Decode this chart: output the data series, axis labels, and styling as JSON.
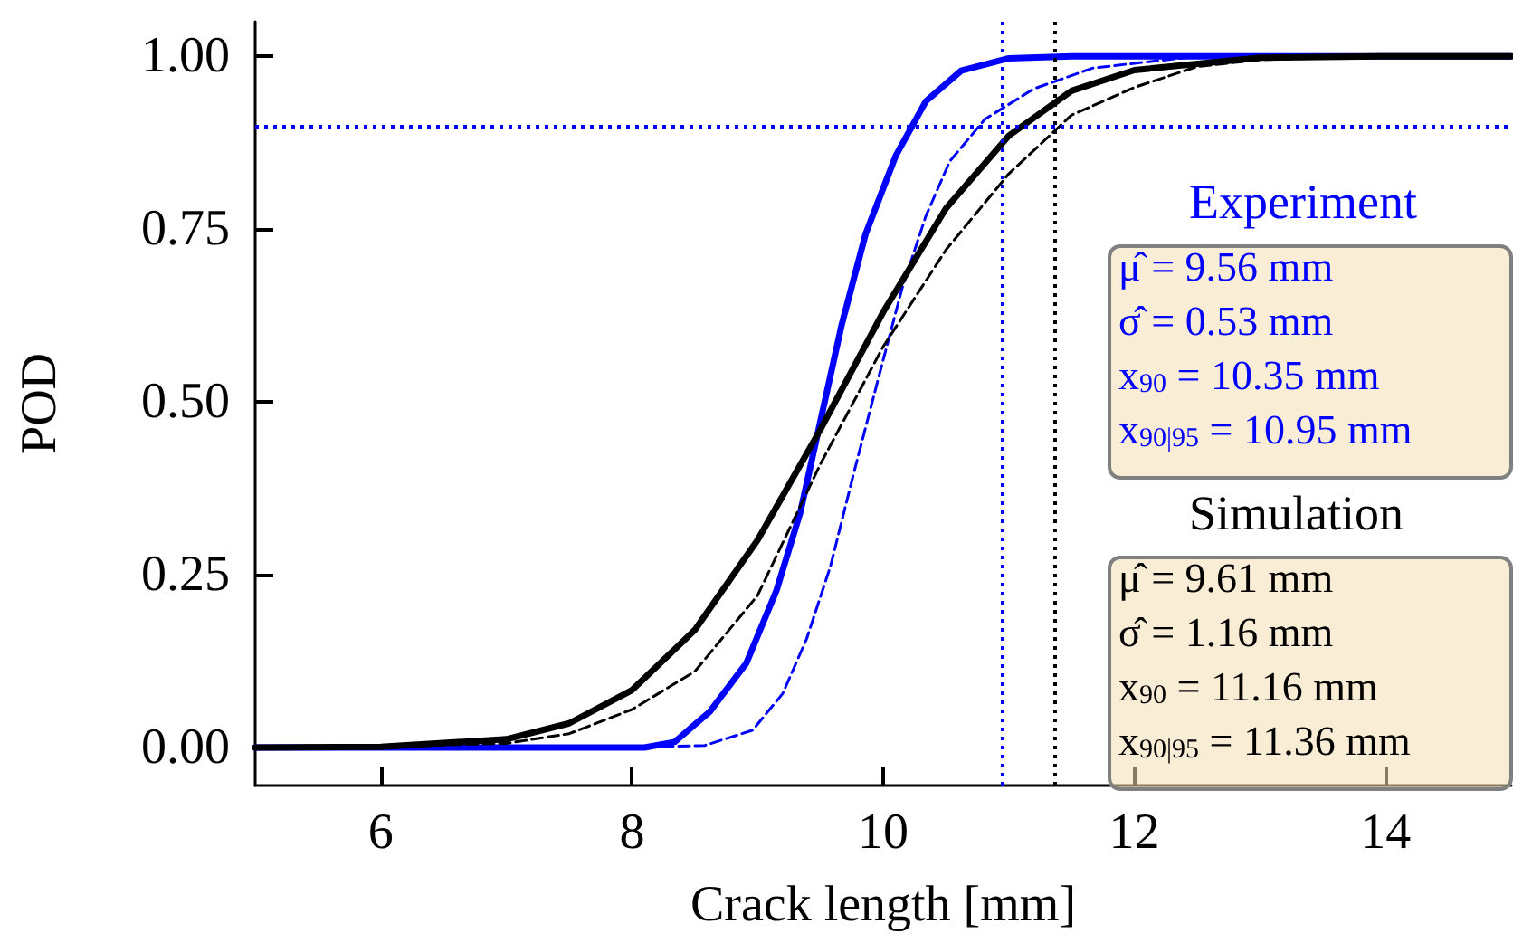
{
  "chart_data": {
    "type": "line",
    "xlabel": "Crack length [mm]",
    "ylabel": "POD",
    "xlim": [
      5,
      15
    ],
    "ylim": [
      -0.055,
      1.05
    ],
    "xticks": [
      6,
      8,
      10,
      12,
      14
    ],
    "yticks": [
      {
        "value": 0,
        "label": "0.00"
      },
      {
        "value": 0.25,
        "label": "0.25"
      },
      {
        "value": 0.5,
        "label": "0.50"
      },
      {
        "value": 0.75,
        "label": "0.75"
      },
      {
        "value": 1,
        "label": "1.00"
      }
    ],
    "marker": "none",
    "series": [
      {
        "color": "#0000ff",
        "line_style": "solid",
        "x": [
          5,
          7.39,
          8.1,
          8.34,
          8.62,
          8.91,
          9.15,
          9.34,
          9.5,
          9.67,
          9.86,
          10.1,
          10.34,
          10.62,
          11.0,
          11.5,
          15
        ],
        "values": [
          0,
          0,
          0,
          0.008,
          0.052,
          0.122,
          0.227,
          0.34,
          0.472,
          0.612,
          0.743,
          0.856,
          0.935,
          0.979,
          0.997,
          1,
          1
        ]
      },
      {
        "color": "#0000ff",
        "line_style": "dashed",
        "x": [
          5,
          8.0,
          8.58,
          8.96,
          9.2,
          9.39,
          9.58,
          9.77,
          9.96,
          10.15,
          10.34,
          10.53,
          10.81,
          11.2,
          11.67,
          12.5,
          15
        ],
        "values": [
          0,
          0,
          0.003,
          0.025,
          0.078,
          0.157,
          0.262,
          0.4,
          0.533,
          0.664,
          0.769,
          0.848,
          0.909,
          0.953,
          0.983,
          1,
          1
        ]
      },
      {
        "color": "#000000",
        "line_style": "solid",
        "x": [
          5,
          6,
          7,
          7.5,
          8,
          8.5,
          9,
          9.5,
          10,
          10.5,
          11,
          11.5,
          12,
          13,
          14,
          15
        ],
        "values": [
          0,
          0.001,
          0.012,
          0.035,
          0.083,
          0.17,
          0.3,
          0.46,
          0.63,
          0.78,
          0.885,
          0.95,
          0.98,
          0.998,
          1,
          1
        ]
      },
      {
        "color": "#000000",
        "line_style": "dashed",
        "x": [
          5,
          6,
          7,
          7.5,
          8,
          8.5,
          9,
          9.5,
          10,
          10.5,
          11,
          11.5,
          12,
          12.5,
          13,
          14,
          15
        ],
        "values": [
          0,
          0.001,
          0.006,
          0.02,
          0.055,
          0.11,
          0.22,
          0.41,
          0.58,
          0.72,
          0.83,
          0.915,
          0.955,
          0.985,
          0.995,
          1,
          1
        ]
      }
    ],
    "ref_lines": [
      {
        "axis": "y",
        "value": 0.9,
        "color": "#0000ff",
        "line_style": "dotted"
      },
      {
        "axis": "x",
        "value": 10.95,
        "color": "#0000ff",
        "line_style": "dotted"
      },
      {
        "axis": "x",
        "value": 11.36,
        "color": "#000000",
        "line_style": "dotted"
      }
    ],
    "annotations": [
      "Experiment",
      "μ̂ = 9.56 mm",
      "σ̂ = 0.53 mm",
      "x$_{90}$ = 10.35 mm",
      "x$_{90|95}$ = 10.95 mm",
      "Simulation",
      "μ̂ = 9.61 mm",
      "σ̂ = 1.16 mm",
      "x$_{90}$ = 11.16 mm",
      "x$_{90|95}$ = 11.36 mm"
    ]
  }
}
